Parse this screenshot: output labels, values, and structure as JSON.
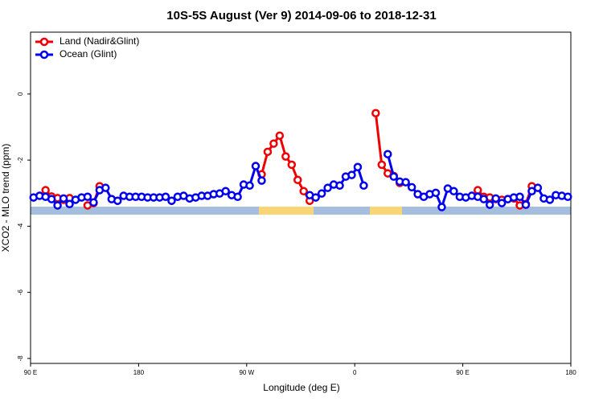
{
  "chart_data": {
    "type": "line",
    "title": "10S-5S August (Ver 9)   2014-09-06 to 2018-12-31",
    "x_label": "Longitude (deg E)",
    "y_label": "XCO2 - MLO trend (ppm)",
    "xlim": [
      90,
      540
    ],
    "xticks": [
      {
        "value": 90,
        "label": "90 E"
      },
      {
        "value": 180,
        "label": "180"
      },
      {
        "value": 270,
        "label": "90 W"
      },
      {
        "value": 360,
        "label": "0"
      },
      {
        "value": 450,
        "label": "90 E"
      },
      {
        "value": 540,
        "label": "180"
      }
    ],
    "ylim": [
      -8.15,
      1.87
    ],
    "yticks": [
      0,
      -2,
      -4,
      -6,
      -8
    ],
    "legend": "top-left",
    "x": [
      92.5,
      97.5,
      102.5,
      107.5,
      112.5,
      117.5,
      122.5,
      127.5,
      132.5,
      137.5,
      142.5,
      147.5,
      152.5,
      157.5,
      162.5,
      167.5,
      172.5,
      177.5,
      182.5,
      187.5,
      192.5,
      197.5,
      202.5,
      207.5,
      212.5,
      217.5,
      222.5,
      227.5,
      232.5,
      237.5,
      242.5,
      247.5,
      252.5,
      257.5,
      262.5,
      267.5,
      272.5,
      277.5,
      282.5,
      287.5,
      292.5,
      297.5,
      302.5,
      307.5,
      312.5,
      317.5,
      322.5,
      327.5,
      332.5,
      337.5,
      342.5,
      347.5,
      352.5,
      357.5,
      362.5,
      367.5,
      372.5,
      377.5,
      382.5,
      387.5,
      392.5,
      397.5,
      402.5,
      407.5,
      412.5,
      417.5,
      422.5,
      427.5,
      432.5,
      437.5,
      442.5,
      447.5,
      452.5,
      457.5,
      462.5,
      467.5,
      472.5,
      477.5,
      482.5,
      487.5,
      492.5,
      497.5,
      502.5,
      507.5,
      512.5,
      517.5,
      522.5,
      527.5,
      532.5,
      537.5
    ],
    "series": [
      {
        "name": "Land (Nadir&Glint)",
        "color": "#ee0000",
        "values": [
          null,
          null,
          -2.91,
          -3.1,
          -3.15,
          -3.2,
          -3.15,
          null,
          null,
          -3.37,
          -3.3,
          -2.79,
          null,
          null,
          null,
          null,
          null,
          null,
          null,
          null,
          null,
          null,
          null,
          null,
          null,
          null,
          null,
          null,
          null,
          null,
          null,
          null,
          null,
          null,
          null,
          null,
          null,
          null,
          -2.43,
          -1.75,
          -1.5,
          -1.26,
          -1.89,
          -2.14,
          -2.6,
          -2.94,
          -3.23,
          null,
          null,
          null,
          null,
          null,
          null,
          null,
          null,
          null,
          null,
          -0.58,
          -2.14,
          -2.4,
          -2.48,
          -2.69,
          null,
          null,
          null,
          null,
          null,
          null,
          null,
          null,
          null,
          null,
          null,
          null,
          -2.91,
          -3.11,
          -3.13,
          -3.18,
          -3.2,
          -3.18,
          -3.16,
          -3.37,
          -3.33,
          -2.79,
          null,
          null,
          null,
          null,
          null,
          null
        ]
      },
      {
        "name": "Ocean (Glint)",
        "color": "#0000ee",
        "values": [
          -3.13,
          -3.08,
          -3.11,
          -3.18,
          -3.37,
          -3.16,
          -3.33,
          -3.2,
          -3.13,
          -3.11,
          -3.28,
          -2.91,
          -2.84,
          -3.18,
          -3.23,
          -3.08,
          -3.11,
          -3.11,
          -3.11,
          -3.13,
          -3.13,
          -3.13,
          -3.11,
          -3.23,
          -3.11,
          -3.08,
          -3.16,
          -3.13,
          -3.08,
          -3.08,
          -3.03,
          -3.01,
          -2.94,
          -3.06,
          -3.11,
          -2.74,
          -2.77,
          -2.18,
          -2.62,
          null,
          null,
          null,
          null,
          null,
          null,
          null,
          -3.06,
          -3.13,
          -3.01,
          -2.84,
          -2.74,
          -2.77,
          -2.5,
          -2.45,
          -2.21,
          -2.77,
          null,
          null,
          null,
          -1.82,
          -2.5,
          -2.65,
          -2.67,
          -2.82,
          -3.03,
          -3.11,
          -3.03,
          -2.99,
          -3.42,
          -2.86,
          -2.94,
          -3.11,
          -3.13,
          -3.08,
          -3.11,
          -3.18,
          -3.35,
          -3.16,
          -3.3,
          -3.18,
          -3.13,
          -3.11,
          -3.35,
          -2.94,
          -2.84,
          -3.16,
          -3.2,
          -3.06,
          -3.08,
          -3.11
        ]
      }
    ]
  }
}
